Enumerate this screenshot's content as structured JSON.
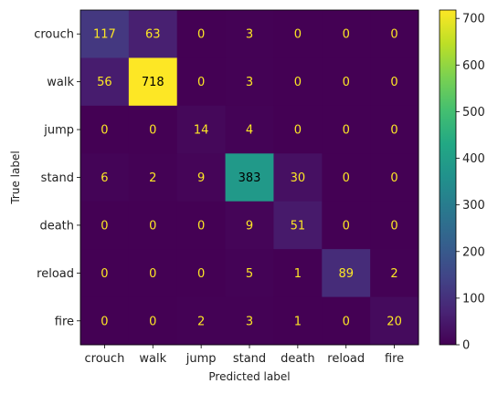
{
  "chart_data": {
    "type": "heatmap",
    "xlabel": "Predicted label",
    "ylabel": "True label",
    "x_categories": [
      "crouch",
      "walk",
      "jump",
      "stand",
      "death",
      "reload",
      "fire"
    ],
    "y_categories": [
      "crouch",
      "walk",
      "jump",
      "stand",
      "death",
      "reload",
      "fire"
    ],
    "matrix": [
      [
        117,
        63,
        0,
        3,
        0,
        0,
        0
      ],
      [
        56,
        718,
        0,
        3,
        0,
        0,
        0
      ],
      [
        0,
        0,
        14,
        4,
        0,
        0,
        0
      ],
      [
        6,
        2,
        9,
        383,
        30,
        0,
        0
      ],
      [
        0,
        0,
        0,
        9,
        51,
        0,
        0
      ],
      [
        0,
        0,
        0,
        5,
        1,
        89,
        2
      ],
      [
        0,
        0,
        2,
        3,
        1,
        0,
        20
      ]
    ],
    "colormap": "viridis",
    "colorbar": {
      "vmin": 0,
      "vmax": 718,
      "ticks": [
        0,
        100,
        200,
        300,
        400,
        500,
        600,
        700
      ]
    }
  }
}
